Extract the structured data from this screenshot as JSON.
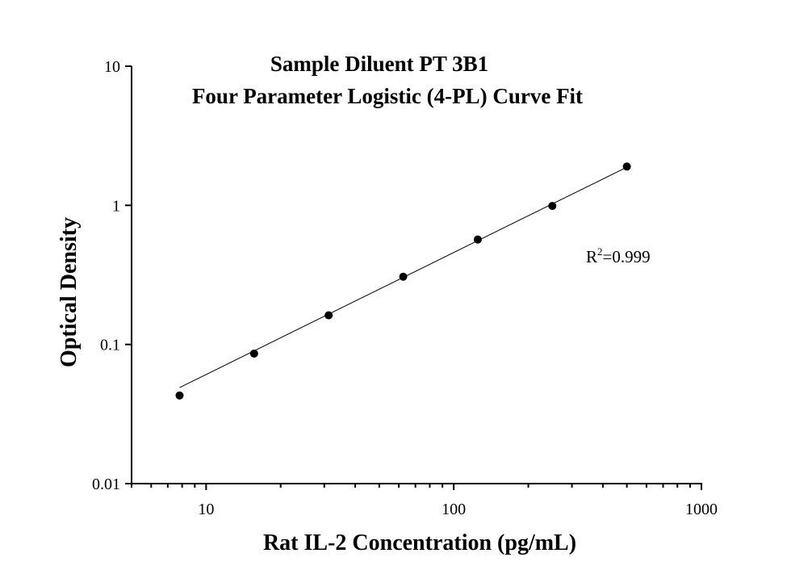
{
  "chart_data": {
    "type": "scatter",
    "title": [
      "Sample Diluent PT 3B1",
      "Four Parameter Logistic (4-PL) Curve Fit"
    ],
    "xlabel": "Rat IL-2 Concentration (pg/mL)",
    "ylabel": "Optical Density",
    "xscale": "log",
    "yscale": "log",
    "xlim": [
      5,
      1000
    ],
    "ylim": [
      0.01,
      10
    ],
    "xticks": [
      {
        "v": 10,
        "label": "10"
      },
      {
        "v": 100,
        "label": "100"
      },
      {
        "v": 1000,
        "label": "1000"
      }
    ],
    "yticks": [
      {
        "v": 0.01,
        "label": "0.01"
      },
      {
        "v": 0.1,
        "label": "0.1"
      },
      {
        "v": 1,
        "label": "1"
      },
      {
        "v": 10,
        "label": "10"
      }
    ],
    "grid": false,
    "points": {
      "x": [
        7.8125,
        15.625,
        31.25,
        62.5,
        125,
        250,
        500
      ],
      "y": [
        0.043,
        0.086,
        0.162,
        0.307,
        0.568,
        0.99,
        1.9
      ]
    },
    "fit_curve": {
      "x": [
        7.8125,
        500
      ],
      "y": [
        0.049,
        1.88
      ]
    },
    "annotation": {
      "text_base": "R",
      "text_sup": "2",
      "text_rest": "=0.999"
    },
    "colors": {
      "points": "#000000",
      "line": "#000000"
    }
  }
}
